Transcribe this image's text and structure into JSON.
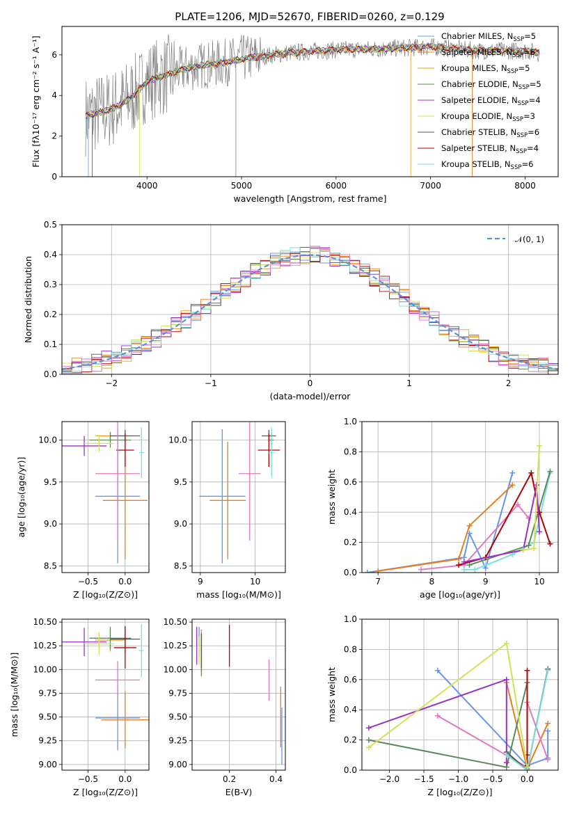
{
  "figure": {
    "title": "PLATE=1206, MJD=52670, FIBERID=0260, z=0.129"
  },
  "colors": {
    "axes": "#000000",
    "grid": "#b0b0b0",
    "data_spectrum": "#808080",
    "normal_curve": "#5b8fd9",
    "models": [
      "#6495ed",
      "#e67e22",
      "#f39c12",
      "#5a8a5a",
      "#9b30c8",
      "#d4e157",
      "#555555",
      "#b30000",
      "#7fdede",
      "#e377c2"
    ]
  },
  "chart_data": [
    {
      "id": "spectrum",
      "type": "line",
      "xlabel": "wavelength [Angstrom, rest frame]",
      "ylabel": "Flux [fλ10⁻¹⁷ erg cm⁻² s⁻¹ A⁻¹]",
      "xlim": [
        3100,
        8350
      ],
      "ylim": [
        0,
        7.4
      ],
      "xticks": [
        4000,
        5000,
        6000,
        7000,
        8000
      ],
      "yticks": [
        0,
        2,
        4,
        6
      ],
      "grid": false,
      "legend_position": "right",
      "series": [
        {
          "name": "Chabrier MILES, N_SSP=5",
          "label": "Chabrier MILES, N",
          "sub": "SSP",
          "tail": "=5",
          "color": "#6495ed"
        },
        {
          "name": "Salpeter MILES, N_SSP=6",
          "label": "Salpeter MILES, N",
          "sub": "SSP",
          "tail": "=6",
          "color": "#e67e22"
        },
        {
          "name": "Kroupa MILES, N_SSP=5",
          "label": "Kroupa MILES, N",
          "sub": "SSP",
          "tail": "=5",
          "color": "#f39c12"
        },
        {
          "name": "Chabrier ELODIE, N_SSP=5",
          "label": "Chabrier ELODIE, N",
          "sub": "SSP",
          "tail": "=5",
          "color": "#5a8a5a"
        },
        {
          "name": "Salpeter ELODIE, N_SSP=4",
          "label": "Salpeter ELODIE, N",
          "sub": "SSP",
          "tail": "=4",
          "color": "#9b30c8"
        },
        {
          "name": "Kroupa ELODIE, N_SSP=3",
          "label": "Kroupa ELODIE, N",
          "sub": "SSP",
          "tail": "=3",
          "color": "#d4e157"
        },
        {
          "name": "Chabrier STELIB, N_SSP=6",
          "label": "Chabrier STELIB, N",
          "sub": "SSP",
          "tail": "=6",
          "color": "#555555"
        },
        {
          "name": "Salpeter STELIB, N_SSP=4",
          "label": "Salpeter STELIB, N",
          "sub": "SSP",
          "tail": "=4",
          "color": "#b30000"
        },
        {
          "name": "Kroupa STELIB, N_SSP=6",
          "label": "Kroupa STELIB, N",
          "sub": "SSP",
          "tail": "=6",
          "color": "#7fdede"
        }
      ],
      "continuum_shape": [
        [
          3350,
          3.0
        ],
        [
          3600,
          3.3
        ],
        [
          3700,
          3.5
        ],
        [
          3800,
          3.8
        ],
        [
          3900,
          4.2
        ],
        [
          4000,
          4.7
        ],
        [
          4200,
          5.0
        ],
        [
          4400,
          5.3
        ],
        [
          4600,
          5.5
        ],
        [
          4800,
          5.6
        ],
        [
          5000,
          5.8
        ],
        [
          5500,
          6.1
        ],
        [
          6000,
          6.25
        ],
        [
          6500,
          6.3
        ],
        [
          7000,
          6.4
        ],
        [
          7500,
          6.2
        ],
        [
          8000,
          6.2
        ],
        [
          8150,
          6.1
        ]
      ]
    },
    {
      "id": "residuals",
      "type": "line",
      "xlabel": "(data-model)/error",
      "ylabel": "Normed distribution",
      "xlim": [
        -2.5,
        2.5
      ],
      "ylim": [
        0,
        0.5
      ],
      "xticks": [
        -2,
        -1,
        0,
        1,
        2
      ],
      "yticks": [
        0.0,
        0.1,
        0.2,
        0.3,
        0.4,
        0.5
      ],
      "grid": true,
      "legend_position": "top-right",
      "legend": "𝒩(0, 1)",
      "normal": {
        "mean": 0,
        "sigma": 1
      }
    },
    {
      "id": "age_vs_Z",
      "type": "scatter",
      "xlabel": "Z [log₁₀(Z/Z⊙)]",
      "ylabel": "age  [log₁₀(age/yr)]",
      "xlim": [
        -0.85,
        0.32
      ],
      "ylim": [
        8.42,
        10.22
      ],
      "xticks": [
        -0.5,
        0.0
      ],
      "yticks": [
        8.5,
        9.0,
        9.5,
        10.0
      ],
      "grid": true,
      "points": [
        {
          "x": -0.1,
          "xerr": 0.3,
          "y": 9.33,
          "yerr": 0.8,
          "color": "#6495ed"
        },
        {
          "x": 0.0,
          "xerr": 0.3,
          "y": 9.28,
          "yerr": 0.7,
          "color": "#e67e22"
        },
        {
          "x": -0.2,
          "xerr": 0.2,
          "y": 10.05,
          "yerr": 0.05,
          "color": "#f39c12"
        },
        {
          "x": -0.2,
          "xerr": 0.28,
          "y": 10.0,
          "yerr": 0.09,
          "color": "#5a8a5a"
        },
        {
          "x": -0.55,
          "xerr": 0.3,
          "y": 9.93,
          "yerr": 0.12,
          "color": "#9b30c8"
        },
        {
          "x": -0.35,
          "xerr": 0.2,
          "y": 9.96,
          "yerr": 0.1,
          "color": "#d4e157"
        },
        {
          "x": 0.0,
          "xerr": 0.2,
          "y": 10.05,
          "yerr": 0.07,
          "color": "#555555"
        },
        {
          "x": 0.0,
          "xerr": 0.12,
          "y": 9.88,
          "yerr": 0.2,
          "color": "#b30000"
        },
        {
          "x": 0.22,
          "xerr": 0.03,
          "y": 9.85,
          "yerr": 0.3,
          "color": "#7fdede"
        },
        {
          "x": -0.1,
          "xerr": 0.3,
          "y": 9.6,
          "yerr": 0.8,
          "color": "#e377c2"
        }
      ]
    },
    {
      "id": "age_vs_mass",
      "type": "scatter",
      "xlabel": "mass [log₁₀(M/M⊙)]",
      "ylabel": "",
      "xlim": [
        8.85,
        10.55
      ],
      "ylim": [
        8.42,
        10.22
      ],
      "xticks": [
        9,
        10
      ],
      "yticks": [
        8.5,
        9.0,
        9.5,
        10.0
      ],
      "grid": true,
      "points": [
        {
          "x": 9.4,
          "xerr": 0.42,
          "y": 9.33,
          "yerr": 0.8,
          "color": "#6495ed"
        },
        {
          "x": 9.5,
          "xerr": 0.33,
          "y": 9.28,
          "yerr": 0.7,
          "color": "#e67e22"
        },
        {
          "x": 10.3,
          "xerr": 0.02,
          "y": 10.05,
          "yerr": 0.05,
          "color": "#f39c12"
        },
        {
          "x": 10.3,
          "xerr": 0.04,
          "y": 10.0,
          "yerr": 0.09,
          "color": "#5a8a5a"
        },
        {
          "x": 10.3,
          "xerr": 0.01,
          "y": 9.93,
          "yerr": 0.12,
          "color": "#9b30c8"
        },
        {
          "x": 10.3,
          "xerr": 0.02,
          "y": 9.96,
          "yerr": 0.1,
          "color": "#d4e157"
        },
        {
          "x": 10.25,
          "xerr": 0.13,
          "y": 10.05,
          "yerr": 0.07,
          "color": "#555555"
        },
        {
          "x": 10.25,
          "xerr": 0.2,
          "y": 9.88,
          "yerr": 0.2,
          "color": "#b30000"
        },
        {
          "x": 10.3,
          "xerr": 0.05,
          "y": 9.85,
          "yerr": 0.3,
          "color": "#7fdede"
        },
        {
          "x": 9.9,
          "xerr": 0.2,
          "y": 9.6,
          "yerr": 0.8,
          "color": "#e377c2"
        }
      ]
    },
    {
      "id": "weight_vs_age",
      "type": "line",
      "xlabel": "age  [log₁₀(age/yr)]",
      "ylabel": "mass weight",
      "xlim": [
        6.7,
        10.35
      ],
      "ylim": [
        0,
        1.0
      ],
      "xticks": [
        7,
        8,
        9,
        10
      ],
      "yticks": [
        0.0,
        0.2,
        0.4,
        0.6,
        0.8,
        1.0
      ],
      "grid": true,
      "series": [
        {
          "color": "#6495ed",
          "x": [
            6.8,
            8.6,
            8.7,
            9.0,
            9.5
          ],
          "y": [
            0.0,
            0.1,
            0.26,
            0.03,
            0.66
          ]
        },
        {
          "color": "#e67e22",
          "x": [
            7.0,
            8.5,
            8.7,
            9.5
          ],
          "y": [
            0.01,
            0.09,
            0.31,
            0.58
          ]
        },
        {
          "color": "#e377c2",
          "x": [
            7.8,
            8.6,
            9.6,
            9.8
          ],
          "y": [
            0.02,
            0.05,
            0.45,
            0.36
          ]
        },
        {
          "color": "#7fdede",
          "x": [
            8.6,
            8.8,
            9.5,
            9.9,
            10.2
          ],
          "y": [
            0.02,
            0.02,
            0.12,
            0.2,
            0.66
          ]
        },
        {
          "color": "#5a8a5a",
          "x": [
            8.7,
            9.8,
            10.2
          ],
          "y": [
            0.05,
            0.18,
            0.67
          ]
        },
        {
          "color": "#b30000",
          "x": [
            8.5,
            9.0,
            9.85,
            10.0,
            10.2
          ],
          "y": [
            0.05,
            0.1,
            0.66,
            0.4,
            0.19
          ]
        },
        {
          "color": "#9b30c8",
          "x": [
            8.6,
            9.7,
            9.95,
            10.0
          ],
          "y": [
            0.07,
            0.15,
            0.58,
            0.27
          ]
        },
        {
          "color": "#d4e157",
          "x": [
            9.7,
            9.9,
            10.0
          ],
          "y": [
            0.15,
            0.16,
            0.84
          ]
        }
      ]
    },
    {
      "id": "mass_vs_Z",
      "type": "scatter",
      "xlabel": "Z [log₁₀(Z/Z⊙)]",
      "ylabel": "mass [log₁₀(M/M⊙)]",
      "xlim": [
        -0.85,
        0.32
      ],
      "ylim": [
        8.94,
        10.53
      ],
      "xticks": [
        -0.5,
        0.0
      ],
      "yticks": [
        9.0,
        9.25,
        9.5,
        9.75,
        10.0,
        10.25,
        10.5
      ],
      "grid": true,
      "points": [
        {
          "x": -0.1,
          "xerr": 0.3,
          "y": 9.49,
          "yerr": 0.34,
          "color": "#6495ed"
        },
        {
          "x": 0.0,
          "xerr": 0.32,
          "y": 9.47,
          "yerr": 0.3,
          "color": "#e67e22"
        },
        {
          "x": -0.2,
          "xerr": 0.2,
          "y": 10.31,
          "yerr": 0.12,
          "color": "#f39c12"
        },
        {
          "x": -0.2,
          "xerr": 0.28,
          "y": 10.33,
          "yerr": 0.12,
          "color": "#5a8a5a"
        },
        {
          "x": -0.55,
          "xerr": 0.3,
          "y": 10.29,
          "yerr": 0.15,
          "color": "#9b30c8"
        },
        {
          "x": -0.35,
          "xerr": 0.2,
          "y": 10.27,
          "yerr": 0.12,
          "color": "#d4e157"
        },
        {
          "x": 0.0,
          "xerr": 0.2,
          "y": 10.32,
          "yerr": 0.14,
          "color": "#555555"
        },
        {
          "x": 0.0,
          "xerr": 0.15,
          "y": 10.23,
          "yerr": 0.22,
          "color": "#b30000"
        },
        {
          "x": 0.22,
          "xerr": 0.03,
          "y": 10.2,
          "yerr": 0.28,
          "color": "#7fdede"
        },
        {
          "x": -0.1,
          "xerr": 0.3,
          "y": 9.89,
          "yerr": 0.2,
          "color": "#e377c2"
        }
      ]
    },
    {
      "id": "mass_vs_ebv",
      "type": "scatter",
      "xlabel": "E(B-V)",
      "ylabel": "",
      "xlim": [
        0.04,
        0.44
      ],
      "ylim": [
        8.94,
        10.53
      ],
      "xticks": [
        0.2,
        0.4
      ],
      "yticks": [
        9.0,
        9.25,
        9.5,
        9.75,
        10.0,
        10.25,
        10.5
      ],
      "grid": true,
      "points": [
        {
          "x": 0.07,
          "y": 10.3,
          "yerr": 0.15,
          "color": "#6495ed"
        },
        {
          "x": 0.08,
          "y": 10.2,
          "yerr": 0.22,
          "color": "#e67e22"
        },
        {
          "x": 0.06,
          "y": 10.25,
          "yerr": 0.2,
          "color": "#9b30c8"
        },
        {
          "x": 0.07,
          "y": 10.2,
          "yerr": 0.15,
          "color": "#d4e157"
        },
        {
          "x": 0.08,
          "y": 10.15,
          "yerr": 0.22,
          "color": "#5a8a5a"
        },
        {
          "x": 0.08,
          "y": 10.2,
          "yerr": 0.18,
          "color": "#555555"
        },
        {
          "x": 0.2,
          "y": 10.25,
          "yerr": 0.22,
          "color": "#b30000"
        },
        {
          "x": 0.37,
          "y": 9.89,
          "yerr": 0.22,
          "color": "#e377c2"
        },
        {
          "x": 0.42,
          "y": 9.5,
          "yerr": 0.32,
          "color": "#e67e22"
        },
        {
          "x": 0.425,
          "y": 9.3,
          "yerr": 0.3,
          "color": "#6495ed"
        }
      ]
    },
    {
      "id": "weight_vs_Z",
      "type": "line",
      "xlabel": "Z [log₁₀(Z/Z⊙)]",
      "ylabel": "mass weight",
      "xlim": [
        -2.4,
        0.45
      ],
      "ylim": [
        0,
        1.0
      ],
      "xticks": [
        -2.0,
        -1.5,
        -1.0,
        -0.5,
        0.0
      ],
      "yticks": [
        0.0,
        0.2,
        0.4,
        0.6,
        0.8,
        1.0
      ],
      "grid": true,
      "series": [
        {
          "color": "#6495ed",
          "x": [
            -1.3,
            0.0,
            0.3,
            0.3
          ],
          "y": [
            0.66,
            0.03,
            0.08,
            0.26
          ]
        },
        {
          "color": "#e67e22",
          "x": [
            -0.3,
            0.0,
            0.3
          ],
          "y": [
            0.58,
            0.01,
            0.31
          ]
        },
        {
          "color": "#e377c2",
          "x": [
            -1.3,
            0.0,
            0.0,
            0.3
          ],
          "y": [
            0.36,
            0.02,
            0.45,
            0.07
          ]
        },
        {
          "color": "#5a8a5a",
          "x": [
            -2.3,
            -0.3,
            0.0,
            0.0
          ],
          "y": [
            0.2,
            0.02,
            0.58,
            0.05
          ]
        },
        {
          "color": "#b30000",
          "x": [
            0.0,
            0.0,
            0.0
          ],
          "y": [
            0.1,
            0.66,
            0.03
          ]
        },
        {
          "color": "#9b30c8",
          "x": [
            -2.3,
            -0.3,
            -0.3
          ],
          "y": [
            0.28,
            0.6,
            0.05
          ]
        },
        {
          "color": "#d4e157",
          "x": [
            -2.3,
            -0.3,
            0.0
          ],
          "y": [
            0.15,
            0.84,
            0.02
          ]
        },
        {
          "color": "#555555",
          "x": [
            -0.3,
            0.0,
            0.3
          ],
          "y": [
            0.12,
            0.0,
            0.67
          ]
        },
        {
          "color": "#7fdede",
          "x": [
            -0.3,
            0.0,
            0.3
          ],
          "y": [
            0.1,
            0.0,
            0.66
          ]
        }
      ]
    }
  ]
}
